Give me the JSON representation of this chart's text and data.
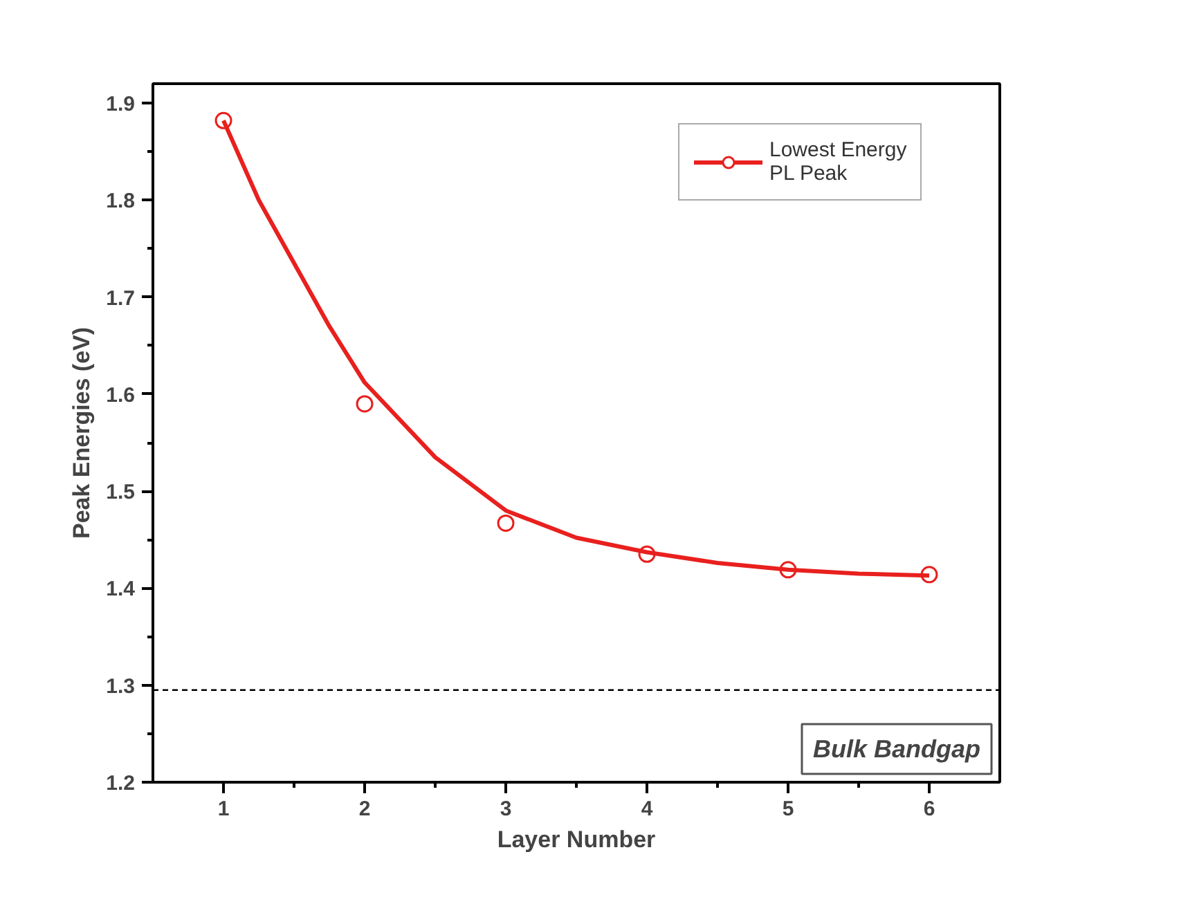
{
  "chart_data": {
    "type": "scatter",
    "xlabel": "Layer Number",
    "ylabel": "Peak Energies (eV)",
    "xlim": [
      0.5,
      6.5
    ],
    "xticks": [
      1,
      2,
      3,
      4,
      5,
      6
    ],
    "ylim": [
      1.2,
      1.92
    ],
    "yticks": [
      1.2,
      1.3,
      1.4,
      1.5,
      1.6,
      1.7,
      1.8,
      1.9
    ],
    "grid": false,
    "legend": "top right",
    "series": [
      {
        "name": "Lowest Energy PL Peak",
        "color": "#e8201e",
        "marker": "circle",
        "x": [
          1,
          2,
          3,
          4,
          5,
          6
        ],
        "values": [
          1.882,
          1.59,
          1.467,
          1.435,
          1.419,
          1.414
        ]
      },
      {
        "type": "line",
        "color": "#e8201e",
        "line_style": "solid",
        "x": [
          1,
          1.25,
          1.5,
          1.75,
          2,
          2.5,
          3,
          3.5,
          4,
          4.5,
          5,
          5.5,
          6
        ],
        "values": [
          1.882,
          1.8,
          1.735,
          1.67,
          1.612,
          1.535,
          1.48,
          1.452,
          1.437,
          1.426,
          1.419,
          1.415,
          1.413
        ]
      }
    ],
    "ref_lines": [
      {
        "axis": "y",
        "value": 1.295,
        "label": "Bulk Bandgap",
        "color": "#000000",
        "line_style": "dashed"
      }
    ]
  }
}
